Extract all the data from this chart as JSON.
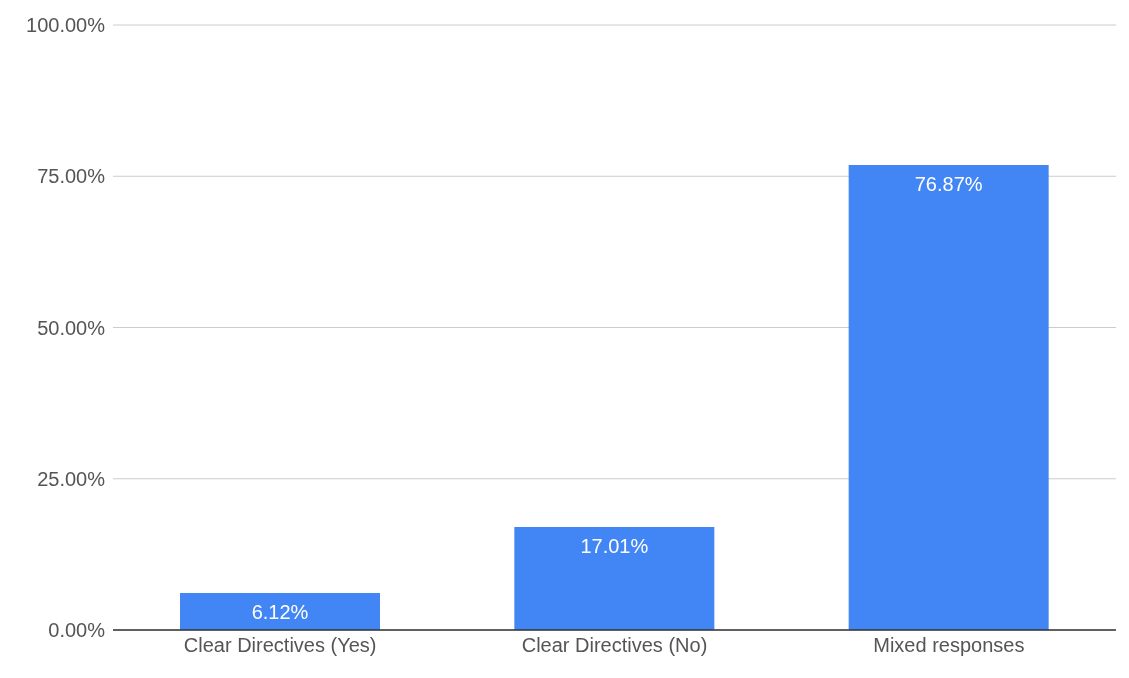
{
  "chart_data": {
    "type": "bar",
    "categories": [
      "Clear Directives (Yes)",
      "Clear Directives (No)",
      "Mixed responses"
    ],
    "values": [
      6.12,
      17.01,
      76.87
    ],
    "value_labels": [
      "6.12%",
      "17.01%",
      "76.87%"
    ],
    "color": "#4285f4",
    "ylim": [
      0,
      100
    ],
    "yticks": [
      {
        "value": 0,
        "label": "0.00%"
      },
      {
        "value": 25,
        "label": "25.00%"
      },
      {
        "value": 50,
        "label": "50.00%"
      },
      {
        "value": 75,
        "label": "75.00%"
      },
      {
        "value": 100,
        "label": "100.00%"
      }
    ],
    "grid": "y"
  }
}
